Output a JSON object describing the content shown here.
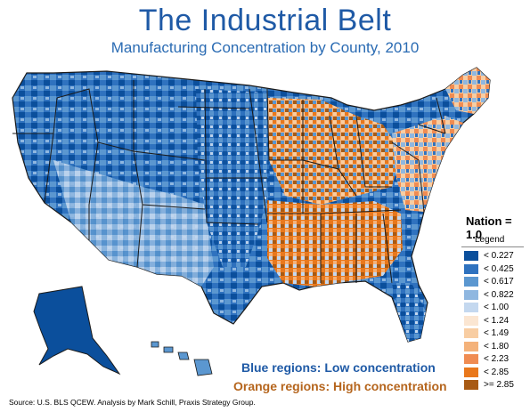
{
  "title": "The Industrial Belt",
  "subtitle": "Manufacturing Concentration by County, 2010",
  "nation_label": "Nation = 1.0",
  "legend": {
    "title": "Legend",
    "items": [
      {
        "label": "< 0.227",
        "color": "#0b4f9c"
      },
      {
        "label": "< 0.425",
        "color": "#2f72bf"
      },
      {
        "label": "< 0.617",
        "color": "#5b97d0"
      },
      {
        "label": "< 0.822",
        "color": "#8fb7e0"
      },
      {
        "label": "< 1.00",
        "color": "#c4d8ef"
      },
      {
        "label": "< 1.24",
        "color": "#fbe6d2"
      },
      {
        "label": "< 1.49",
        "color": "#f8cda2"
      },
      {
        "label": "< 1.80",
        "color": "#f4b27a"
      },
      {
        "label": "< 2.23",
        "color": "#f08c52"
      },
      {
        "label": "< 2.85",
        "color": "#e9781c"
      },
      {
        "label": ">= 2.85",
        "color": "#a85a14"
      }
    ]
  },
  "notes": {
    "blue": "Blue regions: Low concentration",
    "orange": "Orange regions: High concentration"
  },
  "source": "Source: U.S. BLS QCEW. Analysis by Mark Schill, Praxis Strategy Group.",
  "colors": {
    "title": "#1f5aa6",
    "low": "#1f5aa6",
    "high": "#b5651d",
    "state_border": "#1a1a1a"
  }
}
